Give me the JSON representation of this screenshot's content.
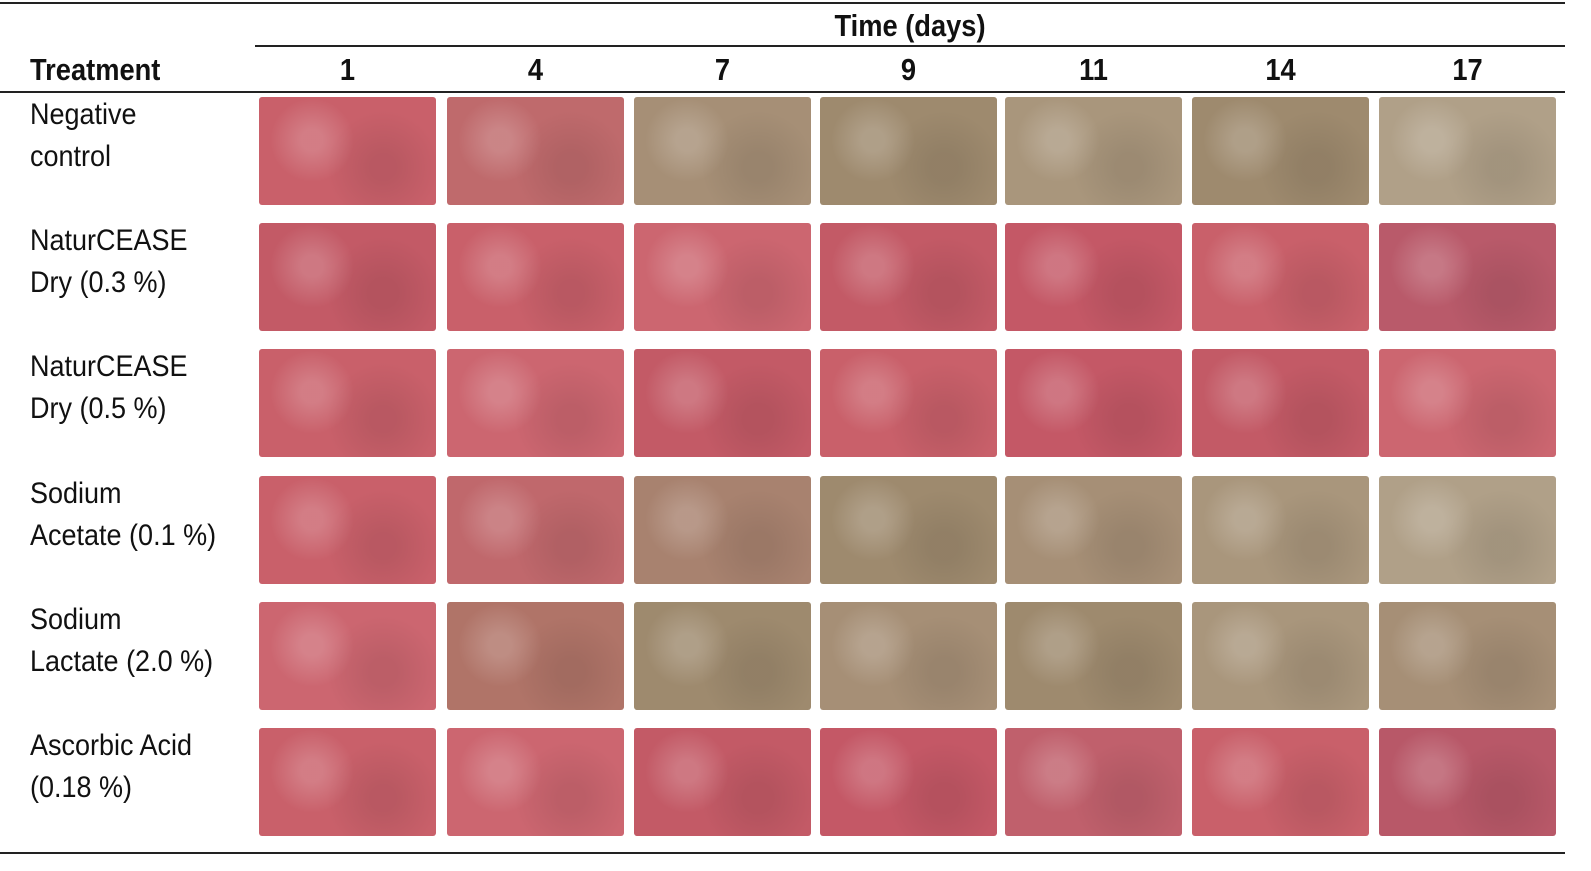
{
  "header": {
    "time_label": "Time (days)",
    "treatment_label": "Treatment",
    "days": [
      "1",
      "4",
      "7",
      "9",
      "11",
      "14",
      "17"
    ]
  },
  "table": {
    "rows": [
      {
        "label": [
          "Negative",
          "control"
        ]
      },
      {
        "label": [
          "NaturCEASE",
          "Dry (0.3 %)"
        ]
      },
      {
        "label": [
          "NaturCEASE",
          "Dry (0.5 %)"
        ]
      },
      {
        "label": [
          "Sodium",
          "Acetate (0.1 %)"
        ]
      },
      {
        "label": [
          "Sodium",
          "Lactate (2.0 %)"
        ]
      },
      {
        "label": [
          "Ascorbic Acid",
          "(0.18 %)"
        ]
      }
    ]
  }
}
